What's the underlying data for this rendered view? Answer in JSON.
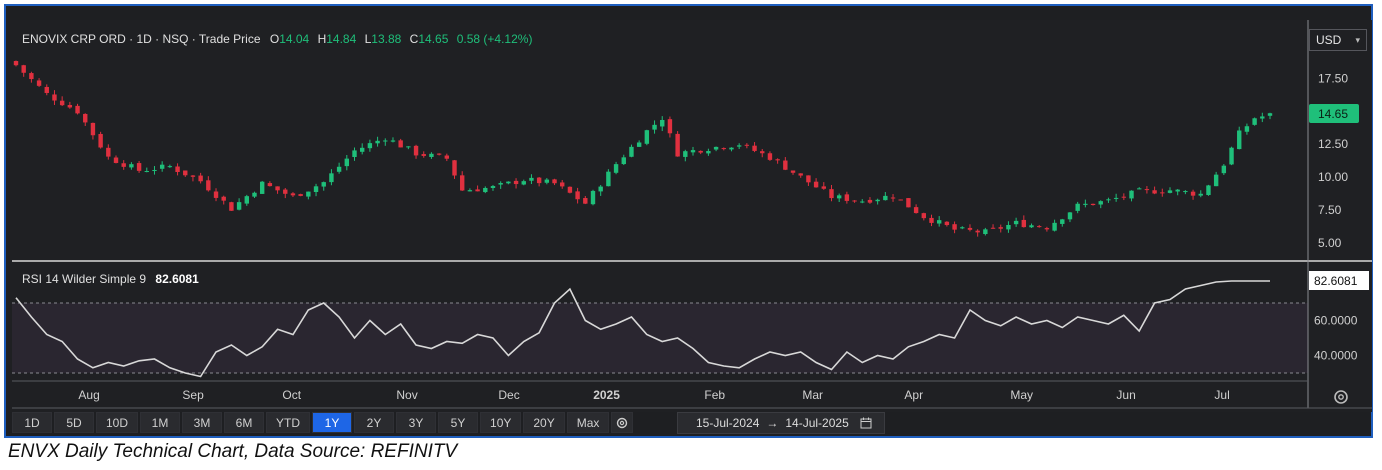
{
  "caption": "ENVX Daily Technical Chart, Data Source: REFINITV",
  "currency": {
    "selected": "USD"
  },
  "icons": {
    "settings": "gear-icon",
    "calendar": "calendar-icon",
    "chevron": "chevron-down-icon"
  },
  "colors": {
    "up": "#1fbf7a",
    "down": "#e0303f",
    "price_badge": "#1fbf7a",
    "rsi_line": "#d8d8d8",
    "background": "#1f2023"
  },
  "toolbar": {
    "ranges": [
      "1D",
      "5D",
      "10D",
      "1M",
      "3M",
      "6M",
      "YTD",
      "1Y",
      "2Y",
      "3Y",
      "5Y",
      "10Y",
      "20Y",
      "Max"
    ],
    "active": "1Y"
  },
  "date_range": {
    "start": "15-Jul-2024",
    "separator": "→",
    "end": "14-Jul-2025"
  },
  "chart_data": [
    {
      "type": "candlestick",
      "legend": {
        "name": "ENOVIX CRP ORD · 1D · NSQ · Trade Price",
        "o_label": "O",
        "o": "14.04",
        "h_label": "H",
        "h": "14.84",
        "l_label": "L",
        "l": "13.88",
        "c_label": "C",
        "c": "14.65",
        "change": "0.58 (+4.12%)"
      },
      "last_price_label": "14.65",
      "y_ticks": [
        "17.50",
        "12.50",
        "10.00",
        "7.50",
        "5.00"
      ],
      "ylim": [
        4,
        19.5
      ],
      "x_ticks": [
        "Aug",
        "Sep",
        "Oct",
        "Nov",
        "Dec",
        "2025",
        "Feb",
        "Mar",
        "Apr",
        "May",
        "Jun",
        "Jul"
      ],
      "close_path": [
        [
          0,
          18.5
        ],
        [
          4,
          16.3
        ],
        [
          8,
          15.0
        ],
        [
          12,
          11.5
        ],
        [
          16,
          10.5
        ],
        [
          20,
          10.8
        ],
        [
          24,
          9.7
        ],
        [
          28,
          7.6
        ],
        [
          32,
          9.5
        ],
        [
          36,
          8.5
        ],
        [
          40,
          9.6
        ],
        [
          44,
          12.0
        ],
        [
          48,
          13.0
        ],
        [
          52,
          11.8
        ],
        [
          56,
          11.4
        ],
        [
          58,
          9.0
        ],
        [
          62,
          9.2
        ],
        [
          66,
          9.8
        ],
        [
          70,
          9.5
        ],
        [
          74,
          8.0
        ],
        [
          78,
          11.0
        ],
        [
          82,
          13.5
        ],
        [
          84,
          14.5
        ],
        [
          86,
          11.8
        ],
        [
          90,
          12.2
        ],
        [
          94,
          12.5
        ],
        [
          98,
          11.5
        ],
        [
          102,
          10.0
        ],
        [
          106,
          8.5
        ],
        [
          110,
          8.2
        ],
        [
          114,
          8.6
        ],
        [
          118,
          7.0
        ],
        [
          122,
          6.0
        ],
        [
          126,
          5.8
        ],
        [
          130,
          6.5
        ],
        [
          134,
          6.2
        ],
        [
          138,
          7.8
        ],
        [
          142,
          8.2
        ],
        [
          146,
          8.9
        ],
        [
          150,
          9.0
        ],
        [
          154,
          8.7
        ],
        [
          157,
          11.0
        ],
        [
          159,
          13.3
        ],
        [
          161,
          14.5
        ],
        [
          163,
          14.7
        ]
      ],
      "n_days": 164
    },
    {
      "type": "line",
      "legend": {
        "name": "RSI 14 Wilder Simple 9",
        "value": "82.6081"
      },
      "last_value_label": "82.6081",
      "y_ticks": [
        "60.0000",
        "40.0000"
      ],
      "ylim": [
        26,
        90
      ],
      "band": [
        30,
        70
      ],
      "x": [
        0,
        2,
        4,
        6,
        8,
        10,
        12,
        14,
        16,
        18,
        20,
        22,
        24,
        26,
        28,
        30,
        32,
        34,
        36,
        38,
        40,
        42,
        44,
        46,
        48,
        50,
        52,
        54,
        56,
        58,
        60,
        62,
        64,
        66,
        68,
        70,
        72,
        74,
        76,
        78,
        80,
        82,
        84,
        86,
        88,
        90,
        92,
        94,
        96,
        98,
        100,
        102,
        104,
        106,
        108,
        110,
        112,
        114,
        116,
        118,
        120,
        122,
        124,
        126,
        128,
        130,
        132,
        134,
        136,
        138,
        140,
        142,
        144,
        146,
        148,
        150,
        152,
        154,
        156,
        158,
        160,
        162,
        163
      ],
      "y": [
        73,
        62,
        52,
        48,
        38,
        33,
        36,
        34,
        37,
        38,
        33,
        30,
        28,
        42,
        46,
        40,
        45,
        55,
        52,
        66,
        70,
        62,
        50,
        60,
        52,
        58,
        46,
        44,
        48,
        47,
        52,
        50,
        40,
        48,
        53,
        70,
        78,
        60,
        55,
        58,
        62,
        52,
        48,
        50,
        44,
        36,
        34,
        33,
        38,
        42,
        40,
        42,
        36,
        32,
        42,
        36,
        40,
        38,
        45,
        48,
        52,
        50,
        66,
        60,
        57,
        62,
        58,
        60,
        56,
        62,
        60,
        58,
        63,
        54,
        70,
        72,
        78,
        80,
        82,
        82.6,
        82.6,
        82.6,
        82.6
      ]
    }
  ]
}
